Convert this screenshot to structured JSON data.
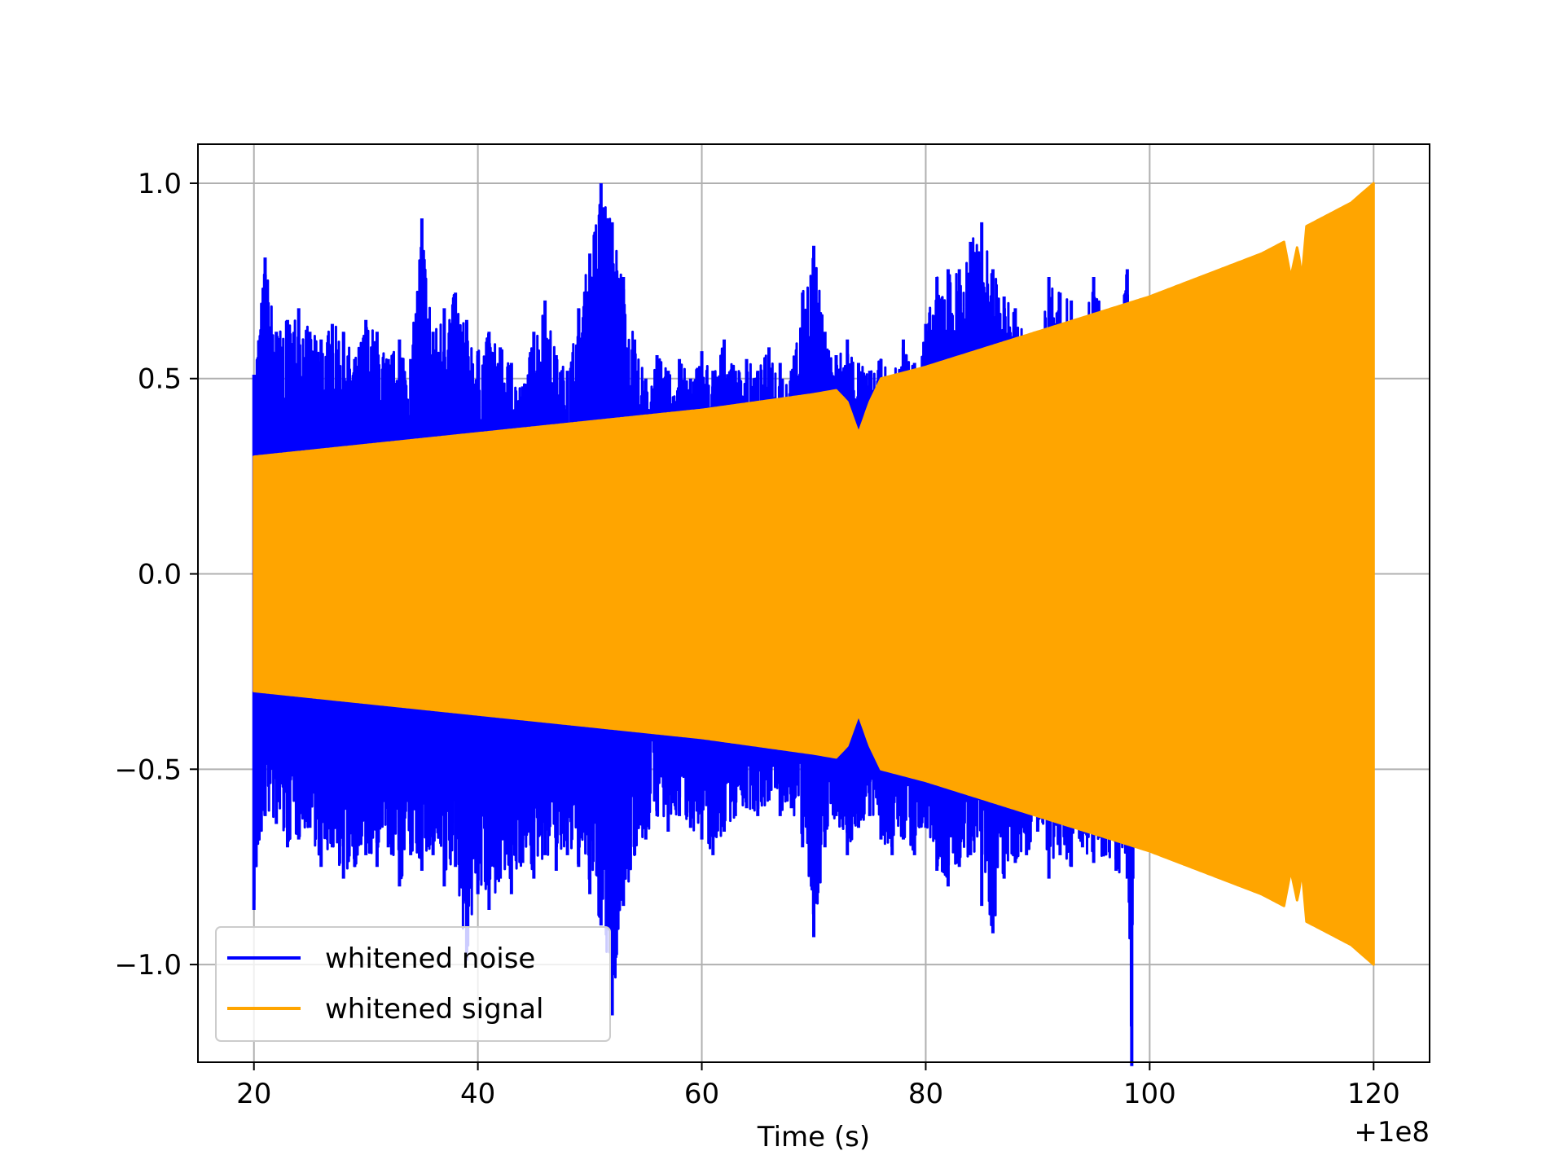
{
  "chart_data": {
    "type": "line",
    "title": "",
    "xlabel": "Time (s)",
    "ylabel": "",
    "x_offset_label": "+1e8",
    "xlim": [
      15,
      125
    ],
    "ylim": [
      -1.25,
      1.1
    ],
    "x_ticks": [
      20,
      40,
      60,
      80,
      100,
      120
    ],
    "y_ticks": [
      -1.0,
      -0.5,
      0.0,
      0.5,
      1.0
    ],
    "x_tick_labels": [
      "20",
      "40",
      "60",
      "80",
      "100",
      "120"
    ],
    "y_tick_labels": [
      "−1.0",
      "−0.5",
      "0.0",
      "0.5",
      "1.0"
    ],
    "grid": true,
    "legend_position": "lower-left",
    "series": [
      {
        "name": "whitened noise",
        "color": "#0000ff",
        "x_range": [
          20,
          98.5
        ],
        "upper_envelope": [
          [
            20,
            0.51
          ],
          [
            21,
            0.81
          ],
          [
            22,
            0.62
          ],
          [
            23,
            0.65
          ],
          [
            24,
            0.68
          ],
          [
            25,
            0.62
          ],
          [
            26,
            0.6
          ],
          [
            27,
            0.64
          ],
          [
            28,
            0.62
          ],
          [
            29,
            0.55
          ],
          [
            30,
            0.65
          ],
          [
            31,
            0.62
          ],
          [
            32,
            0.55
          ],
          [
            33,
            0.6
          ],
          [
            34,
            0.55
          ],
          [
            35,
            0.91
          ],
          [
            36,
            0.62
          ],
          [
            37,
            0.68
          ],
          [
            38,
            0.72
          ],
          [
            39,
            0.65
          ],
          [
            40,
            0.57
          ],
          [
            41,
            0.62
          ],
          [
            42,
            0.58
          ],
          [
            43,
            0.54
          ],
          [
            44,
            0.48
          ],
          [
            45,
            0.62
          ],
          [
            46,
            0.7
          ],
          [
            47,
            0.56
          ],
          [
            48,
            0.52
          ],
          [
            49,
            0.68
          ],
          [
            50,
            0.82
          ],
          [
            51,
            1.0
          ],
          [
            52,
            0.9
          ],
          [
            53,
            0.76
          ],
          [
            54,
            0.6
          ],
          [
            55,
            0.5
          ],
          [
            56,
            0.56
          ],
          [
            57,
            0.52
          ],
          [
            58,
            0.55
          ],
          [
            59,
            0.5
          ],
          [
            60,
            0.57
          ],
          [
            61,
            0.52
          ],
          [
            62,
            0.6
          ],
          [
            63,
            0.52
          ],
          [
            64,
            0.55
          ],
          [
            65,
            0.52
          ],
          [
            66,
            0.58
          ],
          [
            67,
            0.54
          ],
          [
            68,
            0.52
          ],
          [
            69,
            0.72
          ],
          [
            70,
            0.84
          ],
          [
            71,
            0.62
          ],
          [
            72,
            0.56
          ],
          [
            73,
            0.6
          ],
          [
            74,
            0.54
          ],
          [
            75,
            0.52
          ],
          [
            76,
            0.55
          ],
          [
            77,
            0.5
          ],
          [
            78,
            0.6
          ],
          [
            79,
            0.54
          ],
          [
            80,
            0.64
          ],
          [
            81,
            0.76
          ],
          [
            82,
            0.78
          ],
          [
            83,
            0.78
          ],
          [
            84,
            0.85
          ],
          [
            85,
            0.9
          ],
          [
            86,
            0.78
          ],
          [
            87,
            0.71
          ],
          [
            88,
            0.68
          ],
          [
            89,
            0.6
          ],
          [
            90,
            0.58
          ],
          [
            91,
            0.76
          ],
          [
            92,
            0.72
          ],
          [
            93,
            0.7
          ],
          [
            94,
            0.64
          ],
          [
            95,
            0.76
          ],
          [
            96,
            0.66
          ],
          [
            97,
            0.62
          ],
          [
            98,
            0.78
          ],
          [
            98.5,
            0.6
          ]
        ],
        "lower_envelope": [
          [
            20,
            -0.86
          ],
          [
            21,
            -0.62
          ],
          [
            22,
            -0.64
          ],
          [
            23,
            -0.7
          ],
          [
            24,
            -0.68
          ],
          [
            25,
            -0.65
          ],
          [
            26,
            -0.75
          ],
          [
            27,
            -0.7
          ],
          [
            28,
            -0.78
          ],
          [
            29,
            -0.75
          ],
          [
            30,
            -0.72
          ],
          [
            31,
            -0.75
          ],
          [
            32,
            -0.7
          ],
          [
            33,
            -0.8
          ],
          [
            34,
            -0.72
          ],
          [
            35,
            -0.76
          ],
          [
            36,
            -0.72
          ],
          [
            37,
            -0.8
          ],
          [
            38,
            -0.75
          ],
          [
            39,
            -0.99
          ],
          [
            40,
            -0.82
          ],
          [
            41,
            -0.86
          ],
          [
            42,
            -0.78
          ],
          [
            43,
            -0.82
          ],
          [
            44,
            -0.74
          ],
          [
            45,
            -0.78
          ],
          [
            46,
            -0.72
          ],
          [
            47,
            -0.76
          ],
          [
            48,
            -0.72
          ],
          [
            49,
            -0.75
          ],
          [
            50,
            -0.82
          ],
          [
            51,
            -0.9
          ],
          [
            52,
            -1.13
          ],
          [
            53,
            -0.85
          ],
          [
            54,
            -0.72
          ],
          [
            55,
            -0.68
          ],
          [
            56,
            -0.62
          ],
          [
            57,
            -0.66
          ],
          [
            58,
            -0.62
          ],
          [
            59,
            -0.65
          ],
          [
            60,
            -0.68
          ],
          [
            61,
            -0.72
          ],
          [
            62,
            -0.66
          ],
          [
            63,
            -0.62
          ],
          [
            64,
            -0.6
          ],
          [
            65,
            -0.62
          ],
          [
            66,
            -0.58
          ],
          [
            67,
            -0.62
          ],
          [
            68,
            -0.6
          ],
          [
            69,
            -0.7
          ],
          [
            70,
            -0.93
          ],
          [
            71,
            -0.7
          ],
          [
            72,
            -0.62
          ],
          [
            73,
            -0.72
          ],
          [
            74,
            -0.65
          ],
          [
            75,
            -0.62
          ],
          [
            76,
            -0.68
          ],
          [
            77,
            -0.72
          ],
          [
            78,
            -0.68
          ],
          [
            79,
            -0.72
          ],
          [
            80,
            -0.65
          ],
          [
            81,
            -0.76
          ],
          [
            82,
            -0.8
          ],
          [
            83,
            -0.75
          ],
          [
            84,
            -0.72
          ],
          [
            85,
            -0.85
          ],
          [
            86,
            -0.92
          ],
          [
            87,
            -0.78
          ],
          [
            88,
            -0.74
          ],
          [
            89,
            -0.72
          ],
          [
            90,
            -0.66
          ],
          [
            91,
            -0.78
          ],
          [
            92,
            -0.72
          ],
          [
            93,
            -0.75
          ],
          [
            94,
            -0.7
          ],
          [
            95,
            -0.74
          ],
          [
            96,
            -0.72
          ],
          [
            97,
            -0.76
          ],
          [
            98,
            -0.78
          ],
          [
            98.4,
            -1.26
          ],
          [
            98.5,
            -0.78
          ]
        ]
      },
      {
        "name": "whitened signal",
        "color": "#ffa500",
        "x_range": [
          20,
          120
        ],
        "amplitude_envelope": [
          [
            20,
            0.3
          ],
          [
            30,
            0.33
          ],
          [
            40,
            0.36
          ],
          [
            50,
            0.39
          ],
          [
            60,
            0.42
          ],
          [
            70,
            0.46
          ],
          [
            72,
            0.47
          ],
          [
            73,
            0.44
          ],
          [
            74,
            0.36
          ],
          [
            75,
            0.44
          ],
          [
            76,
            0.5
          ],
          [
            80,
            0.53
          ],
          [
            90,
            0.62
          ],
          [
            100,
            0.71
          ],
          [
            110,
            0.82
          ],
          [
            112,
            0.85
          ],
          [
            112.6,
            0.76
          ],
          [
            113.2,
            0.84
          ],
          [
            113.6,
            0.76
          ],
          [
            114,
            0.89
          ],
          [
            116,
            0.92
          ],
          [
            118,
            0.95
          ],
          [
            120,
            1.0
          ]
        ]
      }
    ]
  }
}
